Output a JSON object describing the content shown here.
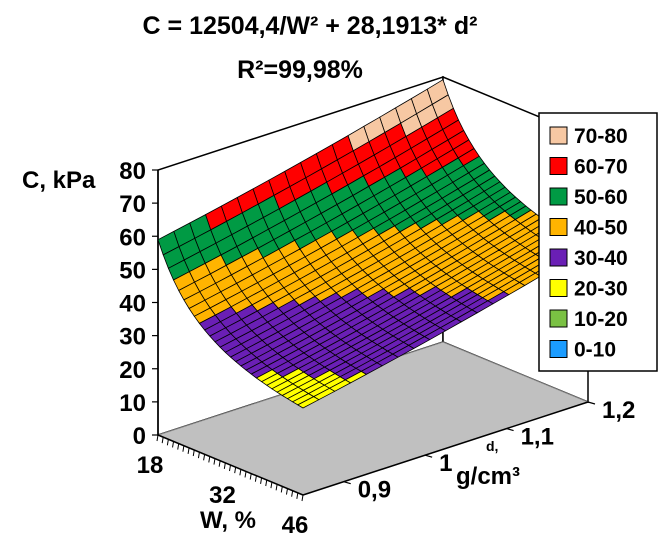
{
  "chart_data": {
    "type": "surface",
    "title": "C = 12504,4/W² + 28,1913* d²",
    "subtitle": "R²=99,98%",
    "zlabel": "C, kPa",
    "xlabel": "W, %",
    "ylabel": "g/cm³",
    "ylabel_symbol": "d,",
    "z_ticks": [
      "0",
      "10",
      "20",
      "30",
      "40",
      "50",
      "60",
      "70",
      "80"
    ],
    "x_ticks": [
      "18",
      "32",
      "46"
    ],
    "y_ticks": [
      "0,9",
      "1",
      "1,1",
      "1,2"
    ],
    "x_range": [
      18,
      46
    ],
    "y_range": [
      0.85,
      1.2
    ],
    "z_range": [
      0,
      80
    ],
    "grid": {
      "w_steps": 28,
      "d_steps": 18
    },
    "equation": {
      "a": 12504.4,
      "b": 28.1913
    },
    "legend_position": "right",
    "legend": [
      {
        "label": "70-80",
        "color": "#f7c8a3"
      },
      {
        "label": "60-70",
        "color": "#ff0000"
      },
      {
        "label": "50-60",
        "color": "#009a44"
      },
      {
        "label": "40-50",
        "color": "#ffb400"
      },
      {
        "label": "30-40",
        "color": "#6a1fb5"
      },
      {
        "label": "20-30",
        "color": "#ffff00"
      },
      {
        "label": "10-20",
        "color": "#7ac143"
      },
      {
        "label": "0-10",
        "color": "#1b9cff"
      }
    ],
    "floor_color": "#c0c0c0"
  }
}
